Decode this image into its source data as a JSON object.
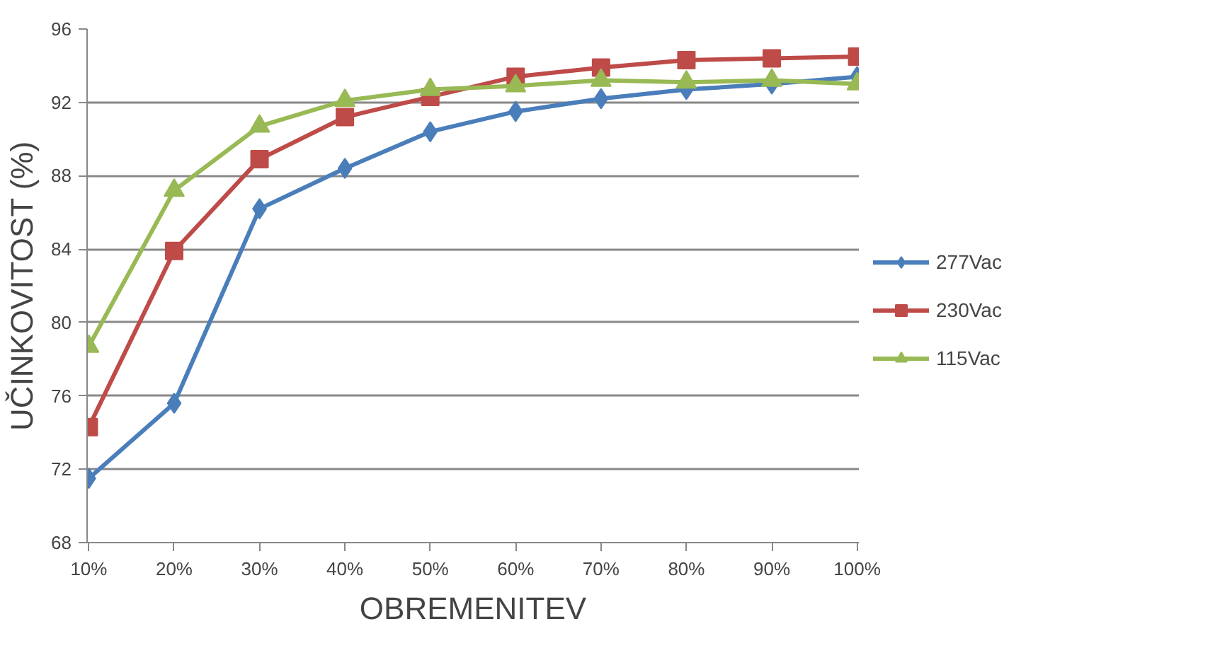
{
  "chart_data": {
    "type": "line",
    "xlabel": "OBREMENITEV",
    "ylabel": "UČINKOVITOST (%)",
    "categories": [
      "10%",
      "20%",
      "30%",
      "40%",
      "50%",
      "60%",
      "70%",
      "80%",
      "90%",
      "100%"
    ],
    "series": [
      {
        "name": "277Vac",
        "color": "#4a7ebb",
        "marker": "diamond",
        "values": [
          71.5,
          75.6,
          86.2,
          88.4,
          90.4,
          91.5,
          92.2,
          92.7,
          93.0,
          93.4
        ]
      },
      {
        "name": "230Vac",
        "color": "#be4b48",
        "marker": "square",
        "values": [
          74.3,
          83.9,
          88.9,
          91.2,
          92.3,
          93.4,
          93.9,
          94.3,
          94.4,
          94.5
        ]
      },
      {
        "name": "115Vac",
        "color": "#98b954",
        "marker": "triangle",
        "values": [
          78.7,
          87.2,
          90.7,
          92.1,
          92.7,
          92.9,
          93.2,
          93.1,
          93.2,
          93.0
        ]
      }
    ],
    "ylim": [
      68,
      96
    ],
    "yticks": [
      68,
      72,
      76,
      80,
      84,
      88,
      92,
      96
    ],
    "grid": "y",
    "legend": "right"
  }
}
